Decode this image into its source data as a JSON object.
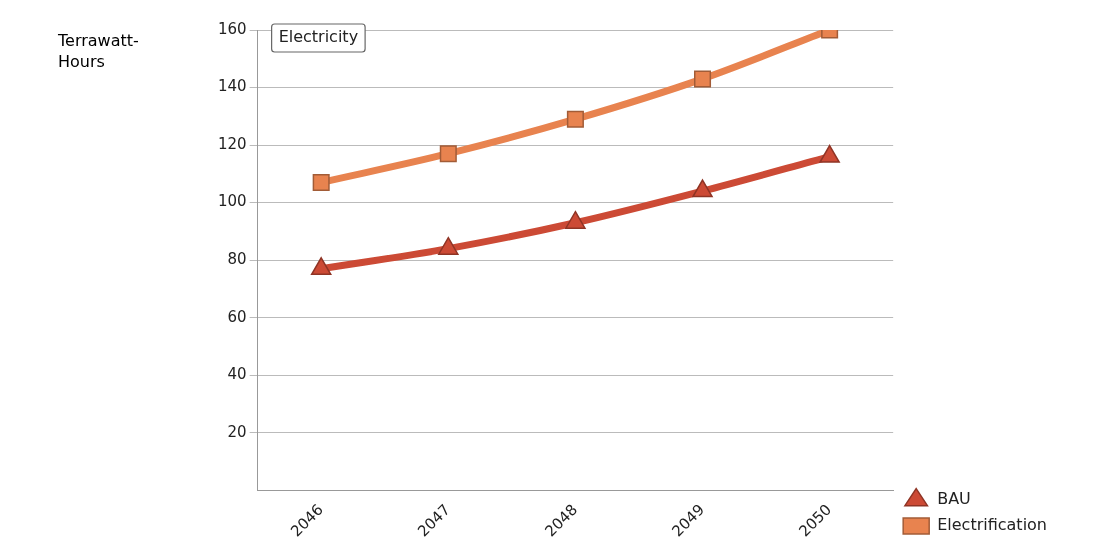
{
  "chart_data": {
    "type": "line",
    "title": "Electricity",
    "ylabel": "Terrawatt-Hours",
    "categories": [
      "2046",
      "2047",
      "2048",
      "2049",
      "2050"
    ],
    "series": [
      {
        "name": "BAU",
        "color": "#cc4a35",
        "marker": "triangle",
        "values": [
          77,
          84,
          93,
          104,
          116
        ]
      },
      {
        "name": "Electrification",
        "color": "#e8834f",
        "marker": "square",
        "values": [
          107,
          117,
          129,
          143,
          160
        ]
      }
    ],
    "ylim": [
      0,
      160
    ],
    "yticks": [
      20,
      40,
      60,
      80,
      100,
      120,
      140,
      160
    ],
    "grid": "y",
    "legend": "bottom right"
  }
}
